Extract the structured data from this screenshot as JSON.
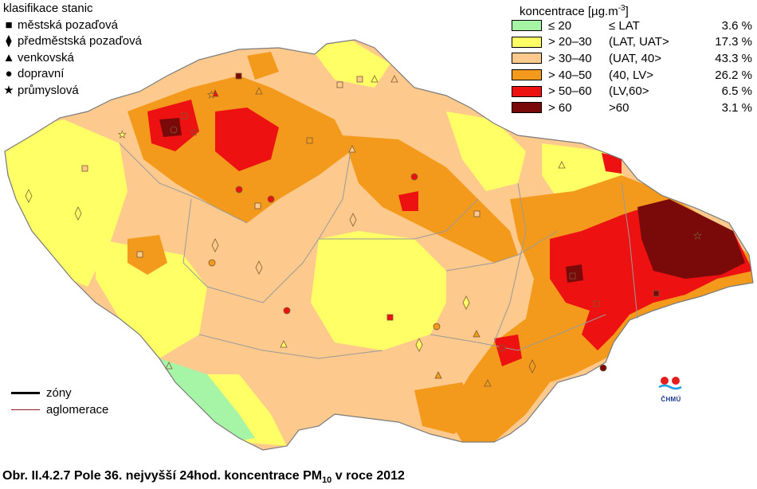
{
  "legend_stations": {
    "title": "klasifikace stanic",
    "items": [
      {
        "symbol": "square-icon",
        "glyph": "■",
        "label": "městská pozaďová"
      },
      {
        "symbol": "diamond-icon",
        "glyph": "⧫",
        "label": "předměstská pozaďová"
      },
      {
        "symbol": "triangle-icon",
        "glyph": "▲",
        "label": "venkovská"
      },
      {
        "symbol": "circle-icon",
        "glyph": "●",
        "label": "dopravní"
      },
      {
        "symbol": "star-icon",
        "glyph": "★",
        "label": "průmyslová"
      }
    ]
  },
  "legend_concentration": {
    "title": "koncentrace [µg.m",
    "title_sup": "-3",
    "title_end": "]",
    "classes": [
      {
        "range": "≤ 20",
        "interval": "≤ LAT",
        "percent": "3.6 %",
        "color": "#a6f5a6"
      },
      {
        "range": "> 20–30",
        "interval": "(LAT, UAT>",
        "percent": "17.3 %",
        "color": "#ffff66"
      },
      {
        "range": "> 30–40",
        "interval": "(UAT, 40>",
        "percent": "43.3 %",
        "color": "#fdc98c"
      },
      {
        "range": "> 40–50",
        "interval": "(40, LV>",
        "percent": "26.2 %",
        "color": "#f39a1c"
      },
      {
        "range": "> 50–60",
        "interval": "(LV,60>",
        "percent": "6.5 %",
        "color": "#ee1111"
      },
      {
        "range": "> 60",
        "interval": ">60",
        "percent": "3.1 %",
        "color": "#7a0a0a"
      }
    ]
  },
  "legend_zones": {
    "zones_label": "zóny",
    "agglomeration_label": "aglomerace",
    "zones_color": "#000000",
    "agglomeration_color": "#8b1a1a"
  },
  "logo": {
    "text": "ČHMÚ"
  },
  "caption": {
    "prefix": "Obr. II.4.2.7  Pole 36. nejvyšší 24hod. koncentrace PM",
    "sub": "10",
    "suffix": " v roce 2012"
  }
}
